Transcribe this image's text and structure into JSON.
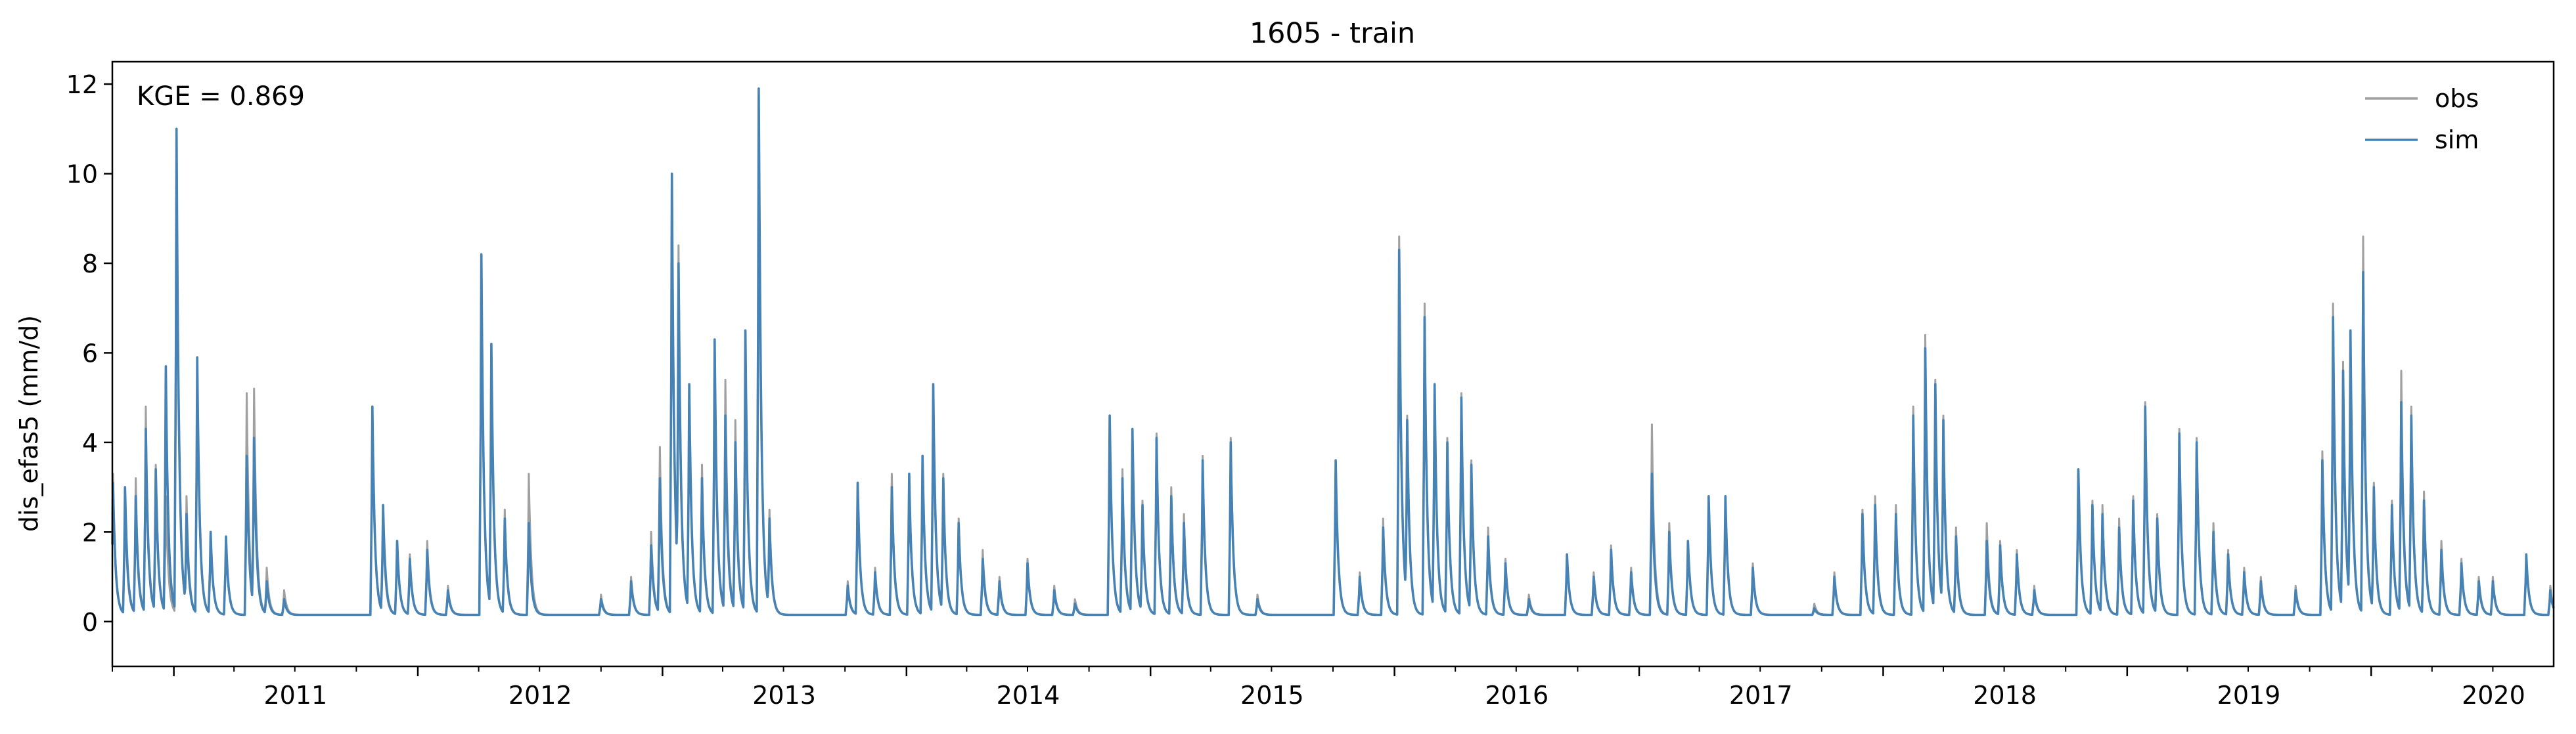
{
  "chart_data": {
    "type": "line",
    "title": "1605 - train",
    "ylabel": "dis_efas5 (mm/d)",
    "xlabel": "",
    "annotation": "KGE = 0.869",
    "xlim": [
      "2010-10-01",
      "2020-09-30"
    ],
    "ylim": [
      -1,
      12.5
    ],
    "yticks": [
      0,
      2,
      4,
      6,
      8,
      10,
      12
    ],
    "ytick_labels": [
      "0",
      "2",
      "4",
      "6",
      "8",
      "10",
      "12"
    ],
    "xtick_labels": [
      "2011",
      "2012",
      "2013",
      "2014",
      "2015",
      "2016",
      "2017",
      "2018",
      "2019",
      "2020"
    ],
    "grid": false,
    "legend": {
      "position": "top-right",
      "entries": [
        "obs",
        "sim"
      ]
    },
    "baseflow": 0.15,
    "series": [
      {
        "name": "obs",
        "color": "#a0a0a0",
        "events": [
          [
            "2010-10-02",
            3.3
          ],
          [
            "2010-10-20",
            2.6
          ],
          [
            "2010-11-05",
            3.2
          ],
          [
            "2010-11-20",
            4.8
          ],
          [
            "2010-12-05",
            3.5
          ],
          [
            "2010-12-20",
            2.8
          ],
          [
            "2011-01-05",
            10.8
          ],
          [
            "2011-01-20",
            2.8
          ],
          [
            "2011-02-05",
            5.7
          ],
          [
            "2011-02-25",
            2.0
          ],
          [
            "2011-03-20",
            1.8
          ],
          [
            "2011-04-20",
            5.1
          ],
          [
            "2011-05-01",
            5.2
          ],
          [
            "2011-05-20",
            1.2
          ],
          [
            "2011-06-15",
            0.7
          ],
          [
            "2011-10-25",
            4.7
          ],
          [
            "2011-11-10",
            2.2
          ],
          [
            "2011-12-01",
            1.8
          ],
          [
            "2011-12-20",
            1.5
          ],
          [
            "2012-01-15",
            1.8
          ],
          [
            "2012-02-15",
            0.8
          ],
          [
            "2012-04-05",
            8.1
          ],
          [
            "2012-04-20",
            6.1
          ],
          [
            "2012-05-10",
            2.5
          ],
          [
            "2012-06-15",
            3.3
          ],
          [
            "2012-10-01",
            0.6
          ],
          [
            "2012-11-15",
            1.0
          ],
          [
            "2012-12-15",
            2.0
          ],
          [
            "2012-12-28",
            3.9
          ],
          [
            "2013-01-15",
            10.0
          ],
          [
            "2013-01-25",
            8.4
          ],
          [
            "2013-02-10",
            5.3
          ],
          [
            "2013-03-01",
            3.5
          ],
          [
            "2013-03-20",
            6.2
          ],
          [
            "2013-04-05",
            5.4
          ],
          [
            "2013-04-20",
            4.5
          ],
          [
            "2013-05-05",
            6.4
          ],
          [
            "2013-05-25",
            11.8
          ],
          [
            "2013-06-10",
            2.5
          ],
          [
            "2013-10-05",
            0.9
          ],
          [
            "2013-10-20",
            3.1
          ],
          [
            "2013-11-15",
            1.2
          ],
          [
            "2013-12-10",
            3.3
          ],
          [
            "2014-01-05",
            3.2
          ],
          [
            "2014-01-25",
            3.6
          ],
          [
            "2014-02-10",
            5.2
          ],
          [
            "2014-02-25",
            3.3
          ],
          [
            "2014-03-20",
            2.3
          ],
          [
            "2014-04-25",
            1.6
          ],
          [
            "2014-05-20",
            1.0
          ],
          [
            "2014-07-01",
            1.4
          ],
          [
            "2014-08-10",
            0.8
          ],
          [
            "2014-09-10",
            0.5
          ],
          [
            "2014-11-01",
            4.6
          ],
          [
            "2014-11-20",
            3.4
          ],
          [
            "2014-12-05",
            4.3
          ],
          [
            "2014-12-20",
            2.7
          ],
          [
            "2015-01-10",
            4.2
          ],
          [
            "2015-02-01",
            3.0
          ],
          [
            "2015-02-20",
            2.4
          ],
          [
            "2015-03-20",
            3.7
          ],
          [
            "2015-05-01",
            4.1
          ],
          [
            "2015-06-10",
            0.6
          ],
          [
            "2015-10-05",
            3.5
          ],
          [
            "2015-11-10",
            1.1
          ],
          [
            "2015-12-15",
            2.3
          ],
          [
            "2016-01-08",
            8.6
          ],
          [
            "2016-01-20",
            4.6
          ],
          [
            "2016-02-15",
            7.1
          ],
          [
            "2016-03-01",
            5.2
          ],
          [
            "2016-03-20",
            4.1
          ],
          [
            "2016-04-10",
            5.1
          ],
          [
            "2016-04-25",
            3.6
          ],
          [
            "2016-05-20",
            2.1
          ],
          [
            "2016-06-15",
            1.4
          ],
          [
            "2016-07-20",
            0.6
          ],
          [
            "2016-09-15",
            1.5
          ],
          [
            "2016-10-25",
            1.1
          ],
          [
            "2016-11-20",
            1.7
          ],
          [
            "2016-12-20",
            1.2
          ],
          [
            "2017-01-20",
            4.4
          ],
          [
            "2017-02-15",
            2.2
          ],
          [
            "2017-03-15",
            1.8
          ],
          [
            "2017-04-15",
            2.8
          ],
          [
            "2017-05-10",
            2.8
          ],
          [
            "2017-06-20",
            1.3
          ],
          [
            "2017-09-20",
            0.4
          ],
          [
            "2017-10-20",
            1.1
          ],
          [
            "2017-12-01",
            2.5
          ],
          [
            "2017-12-20",
            2.8
          ],
          [
            "2018-01-20",
            2.6
          ],
          [
            "2018-02-15",
            4.8
          ],
          [
            "2018-03-05",
            6.4
          ],
          [
            "2018-03-20",
            5.4
          ],
          [
            "2018-04-01",
            4.6
          ],
          [
            "2018-04-20",
            2.1
          ],
          [
            "2018-06-05",
            2.2
          ],
          [
            "2018-06-25",
            1.8
          ],
          [
            "2018-07-20",
            1.6
          ],
          [
            "2018-08-15",
            0.8
          ],
          [
            "2018-10-20",
            3.4
          ],
          [
            "2018-11-10",
            2.7
          ],
          [
            "2018-11-25",
            2.6
          ],
          [
            "2018-12-20",
            2.3
          ],
          [
            "2019-01-10",
            2.8
          ],
          [
            "2019-01-28",
            4.9
          ],
          [
            "2019-02-15",
            2.4
          ],
          [
            "2019-03-20",
            4.3
          ],
          [
            "2019-04-15",
            4.1
          ],
          [
            "2019-05-10",
            2.2
          ],
          [
            "2019-06-01",
            1.6
          ],
          [
            "2019-06-25",
            1.2
          ],
          [
            "2019-07-20",
            1.0
          ],
          [
            "2019-09-10",
            0.8
          ],
          [
            "2019-10-20",
            3.8
          ],
          [
            "2019-11-05",
            7.1
          ],
          [
            "2019-11-20",
            5.8
          ],
          [
            "2019-12-01",
            6.2
          ],
          [
            "2019-12-20",
            8.6
          ],
          [
            "2020-01-05",
            3.1
          ],
          [
            "2020-02-01",
            2.7
          ],
          [
            "2020-02-15",
            5.6
          ],
          [
            "2020-03-01",
            4.8
          ],
          [
            "2020-03-20",
            2.9
          ],
          [
            "2020-04-15",
            1.8
          ],
          [
            "2020-05-15",
            1.4
          ],
          [
            "2020-06-10",
            1.0
          ],
          [
            "2020-07-01",
            1.0
          ],
          [
            "2020-08-20",
            1.5
          ],
          [
            "2020-09-25",
            0.8
          ]
        ]
      },
      {
        "name": "sim",
        "color": "#4682b4",
        "events": [
          [
            "2010-10-02",
            3.1
          ],
          [
            "2010-10-20",
            3.0
          ],
          [
            "2010-11-05",
            2.8
          ],
          [
            "2010-11-20",
            4.3
          ],
          [
            "2010-12-05",
            3.4
          ],
          [
            "2010-12-20",
            5.7
          ],
          [
            "2011-01-05",
            11.0
          ],
          [
            "2011-01-20",
            2.4
          ],
          [
            "2011-02-05",
            5.9
          ],
          [
            "2011-02-25",
            2.0
          ],
          [
            "2011-03-20",
            1.9
          ],
          [
            "2011-04-20",
            3.7
          ],
          [
            "2011-05-01",
            4.1
          ],
          [
            "2011-05-20",
            0.9
          ],
          [
            "2011-06-15",
            0.5
          ],
          [
            "2011-10-25",
            4.8
          ],
          [
            "2011-11-10",
            2.6
          ],
          [
            "2011-12-01",
            1.8
          ],
          [
            "2011-12-20",
            1.4
          ],
          [
            "2012-01-15",
            1.6
          ],
          [
            "2012-02-15",
            0.7
          ],
          [
            "2012-04-05",
            8.2
          ],
          [
            "2012-04-20",
            6.2
          ],
          [
            "2012-05-10",
            2.3
          ],
          [
            "2012-06-15",
            2.2
          ],
          [
            "2012-10-01",
            0.5
          ],
          [
            "2012-11-15",
            0.9
          ],
          [
            "2012-12-15",
            1.7
          ],
          [
            "2012-12-28",
            3.2
          ],
          [
            "2013-01-15",
            10.0
          ],
          [
            "2013-01-25",
            8.0
          ],
          [
            "2013-02-10",
            5.3
          ],
          [
            "2013-03-01",
            3.2
          ],
          [
            "2013-03-20",
            6.3
          ],
          [
            "2013-04-05",
            4.6
          ],
          [
            "2013-04-20",
            4.0
          ],
          [
            "2013-05-05",
            6.5
          ],
          [
            "2013-05-25",
            11.9
          ],
          [
            "2013-06-10",
            2.3
          ],
          [
            "2013-10-05",
            0.8
          ],
          [
            "2013-10-20",
            3.1
          ],
          [
            "2013-11-15",
            1.1
          ],
          [
            "2013-12-10",
            3.0
          ],
          [
            "2014-01-05",
            3.3
          ],
          [
            "2014-01-25",
            3.7
          ],
          [
            "2014-02-10",
            5.3
          ],
          [
            "2014-02-25",
            3.2
          ],
          [
            "2014-03-20",
            2.2
          ],
          [
            "2014-04-25",
            1.4
          ],
          [
            "2014-05-20",
            0.9
          ],
          [
            "2014-07-01",
            1.3
          ],
          [
            "2014-08-10",
            0.7
          ],
          [
            "2014-09-10",
            0.4
          ],
          [
            "2014-11-01",
            4.6
          ],
          [
            "2014-11-20",
            3.2
          ],
          [
            "2014-12-05",
            4.3
          ],
          [
            "2014-12-20",
            2.6
          ],
          [
            "2015-01-10",
            4.1
          ],
          [
            "2015-02-01",
            2.8
          ],
          [
            "2015-02-20",
            2.2
          ],
          [
            "2015-03-20",
            3.6
          ],
          [
            "2015-05-01",
            4.0
          ],
          [
            "2015-06-10",
            0.5
          ],
          [
            "2015-10-05",
            3.6
          ],
          [
            "2015-11-10",
            1.0
          ],
          [
            "2015-12-15",
            2.1
          ],
          [
            "2016-01-08",
            8.3
          ],
          [
            "2016-01-20",
            4.5
          ],
          [
            "2016-02-15",
            6.8
          ],
          [
            "2016-03-01",
            5.3
          ],
          [
            "2016-03-20",
            4.0
          ],
          [
            "2016-04-10",
            5.0
          ],
          [
            "2016-04-25",
            3.5
          ],
          [
            "2016-05-20",
            1.9
          ],
          [
            "2016-06-15",
            1.3
          ],
          [
            "2016-07-20",
            0.5
          ],
          [
            "2016-09-15",
            1.5
          ],
          [
            "2016-10-25",
            1.0
          ],
          [
            "2016-11-20",
            1.6
          ],
          [
            "2016-12-20",
            1.1
          ],
          [
            "2017-01-20",
            3.3
          ],
          [
            "2017-02-15",
            2.0
          ],
          [
            "2017-03-15",
            1.8
          ],
          [
            "2017-04-15",
            2.8
          ],
          [
            "2017-05-10",
            2.8
          ],
          [
            "2017-06-20",
            1.2
          ],
          [
            "2017-09-20",
            0.3
          ],
          [
            "2017-10-20",
            1.0
          ],
          [
            "2017-12-01",
            2.4
          ],
          [
            "2017-12-20",
            2.6
          ],
          [
            "2018-01-20",
            2.4
          ],
          [
            "2018-02-15",
            4.6
          ],
          [
            "2018-03-05",
            6.1
          ],
          [
            "2018-03-20",
            5.3
          ],
          [
            "2018-04-01",
            4.5
          ],
          [
            "2018-04-20",
            1.9
          ],
          [
            "2018-06-05",
            1.8
          ],
          [
            "2018-06-25",
            1.7
          ],
          [
            "2018-07-20",
            1.5
          ],
          [
            "2018-08-15",
            0.7
          ],
          [
            "2018-10-20",
            3.4
          ],
          [
            "2018-11-10",
            2.6
          ],
          [
            "2018-11-25",
            2.4
          ],
          [
            "2018-12-20",
            2.1
          ],
          [
            "2019-01-10",
            2.7
          ],
          [
            "2019-01-28",
            4.8
          ],
          [
            "2019-02-15",
            2.3
          ],
          [
            "2019-03-20",
            4.2
          ],
          [
            "2019-04-15",
            4.0
          ],
          [
            "2019-05-10",
            2.0
          ],
          [
            "2019-06-01",
            1.5
          ],
          [
            "2019-06-25",
            1.1
          ],
          [
            "2019-07-20",
            0.9
          ],
          [
            "2019-09-10",
            0.7
          ],
          [
            "2019-10-20",
            3.6
          ],
          [
            "2019-11-05",
            6.8
          ],
          [
            "2019-11-20",
            5.6
          ],
          [
            "2019-12-01",
            6.5
          ],
          [
            "2019-12-20",
            7.8
          ],
          [
            "2020-01-05",
            3.0
          ],
          [
            "2020-02-01",
            2.6
          ],
          [
            "2020-02-15",
            4.9
          ],
          [
            "2020-03-01",
            4.6
          ],
          [
            "2020-03-20",
            2.7
          ],
          [
            "2020-04-15",
            1.6
          ],
          [
            "2020-05-15",
            1.3
          ],
          [
            "2020-06-10",
            0.9
          ],
          [
            "2020-07-01",
            0.9
          ],
          [
            "2020-08-20",
            1.5
          ],
          [
            "2020-09-25",
            0.7
          ]
        ]
      }
    ]
  }
}
